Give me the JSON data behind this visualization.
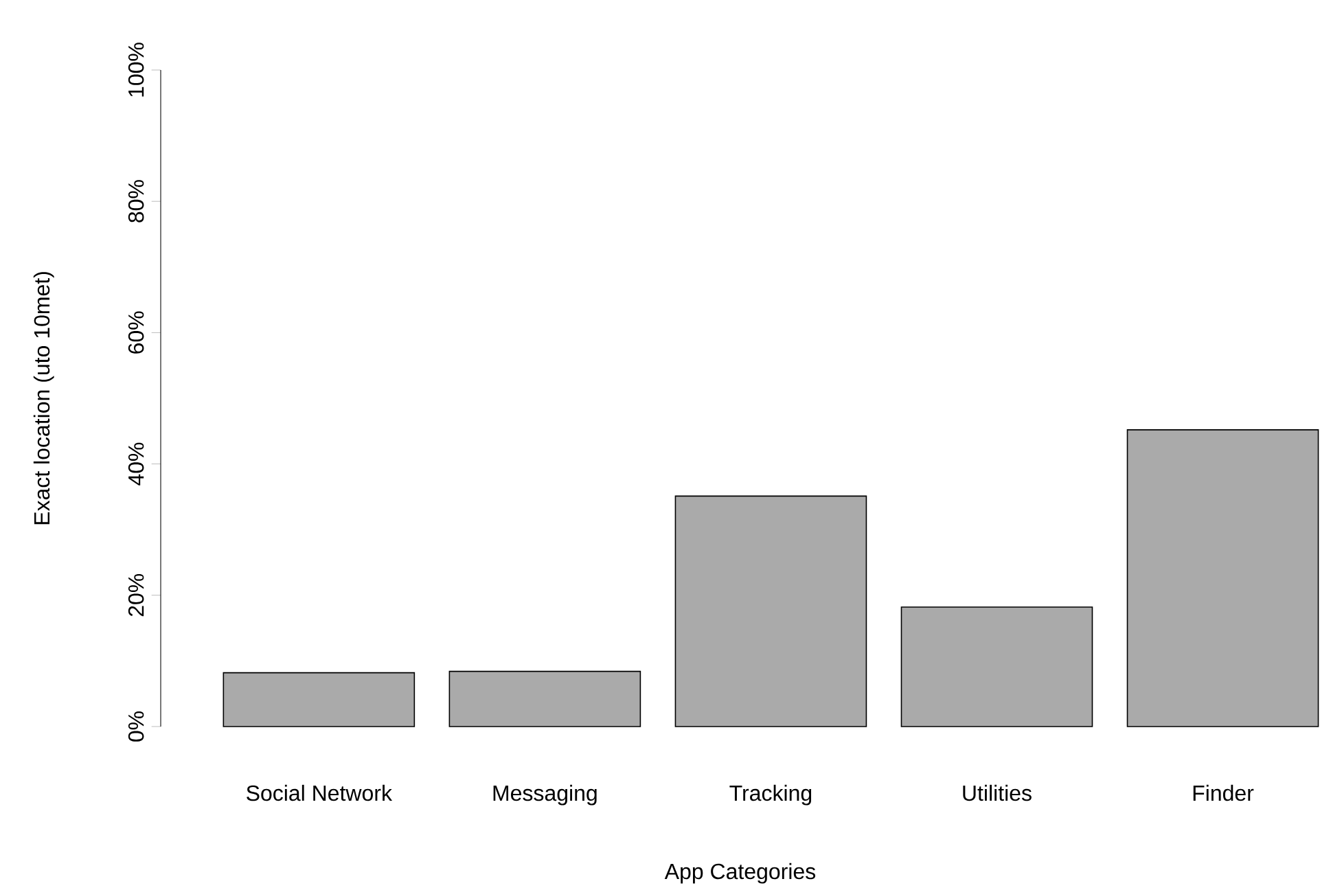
{
  "chart_data": {
    "type": "bar",
    "xlabel": "App Categories",
    "ylabel": "Exact location (uto 10met)",
    "categories": [
      "Social Network",
      "Messaging",
      "Tracking",
      "Utilities",
      "Finder"
    ],
    "values": [
      8.2,
      8.4,
      35.1,
      18.2,
      45.2
    ],
    "color": "#aaaaaa",
    "ylim": [
      0,
      100
    ],
    "yticks": [
      {
        "value": 0,
        "label": "0%"
      },
      {
        "value": 20,
        "label": "20%"
      },
      {
        "value": 40,
        "label": "40%"
      },
      {
        "value": 60,
        "label": "60%"
      },
      {
        "value": 80,
        "label": "80%"
      },
      {
        "value": 100,
        "label": "100%"
      }
    ]
  }
}
